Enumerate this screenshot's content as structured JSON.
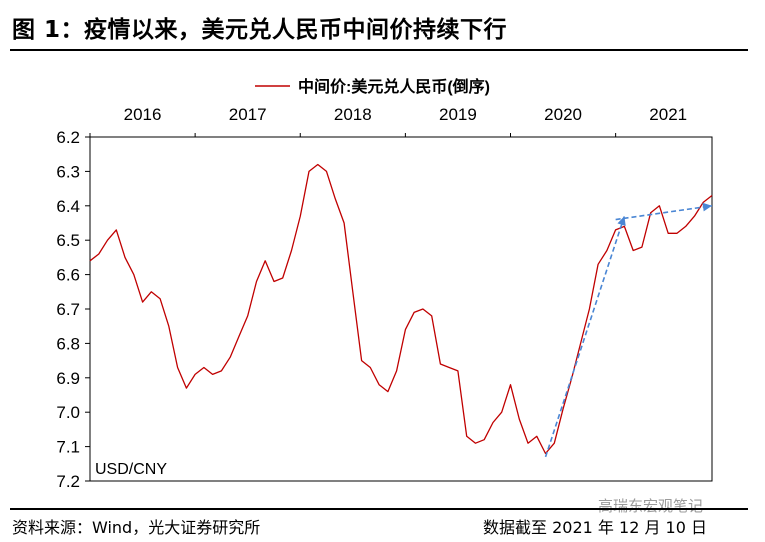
{
  "header": {
    "title": "图 1：疫情以来，美元兑人民币中间价持续下行"
  },
  "footer": {
    "source": "资料来源：Wind，光大证券研究所",
    "date_note": "数据截至 2021 年 12 月 10 日"
  },
  "watermark": "高瑞东宏观笔记",
  "colors": {
    "series": "#c00000",
    "trend_arrow": "#4a86d4",
    "axis": "#000000"
  },
  "chart_data": {
    "type": "line",
    "legend": "中间价:美元兑人民币(倒序)",
    "legend_position": "top",
    "unit_label": "USD/CNY",
    "y_inverted": true,
    "ylim": [
      7.2,
      6.2
    ],
    "y_ticks": [
      "6.2",
      "6.3",
      "6.4",
      "6.5",
      "6.6",
      "6.7",
      "6.8",
      "6.9",
      "7.0",
      "7.1",
      "7.2"
    ],
    "x_ticks": [
      "2016",
      "2017",
      "2018",
      "2019",
      "2020",
      "2021"
    ],
    "x_range": [
      "2016-01",
      "2021-12"
    ],
    "grid": false,
    "series": [
      {
        "x": [
          "2016-01",
          "2016-02",
          "2016-03",
          "2016-04",
          "2016-05",
          "2016-06",
          "2016-07",
          "2016-08",
          "2016-09",
          "2016-10",
          "2016-11",
          "2016-12",
          "2017-01",
          "2017-02",
          "2017-03",
          "2017-04",
          "2017-05",
          "2017-06",
          "2017-07",
          "2017-08",
          "2017-09",
          "2017-10",
          "2017-11",
          "2017-12",
          "2018-01",
          "2018-02",
          "2018-03",
          "2018-04",
          "2018-05",
          "2018-06",
          "2018-07",
          "2018-08",
          "2018-09",
          "2018-10",
          "2018-11",
          "2018-12",
          "2019-01",
          "2019-02",
          "2019-03",
          "2019-04",
          "2019-05",
          "2019-06",
          "2019-07",
          "2019-08",
          "2019-09",
          "2019-10",
          "2019-11",
          "2019-12",
          "2020-01",
          "2020-02",
          "2020-03",
          "2020-04",
          "2020-05",
          "2020-06",
          "2020-07",
          "2020-08",
          "2020-09",
          "2020-10",
          "2020-11",
          "2020-12",
          "2021-01",
          "2021-02",
          "2021-03",
          "2021-04",
          "2021-05",
          "2021-06",
          "2021-07",
          "2021-08",
          "2021-09",
          "2021-10",
          "2021-11",
          "2021-12"
        ],
        "values": [
          6.56,
          6.54,
          6.5,
          6.47,
          6.55,
          6.6,
          6.68,
          6.65,
          6.67,
          6.75,
          6.87,
          6.93,
          6.89,
          6.87,
          6.89,
          6.88,
          6.84,
          6.78,
          6.72,
          6.62,
          6.56,
          6.62,
          6.61,
          6.53,
          6.43,
          6.3,
          6.28,
          6.3,
          6.38,
          6.45,
          6.65,
          6.85,
          6.87,
          6.92,
          6.94,
          6.88,
          6.76,
          6.71,
          6.7,
          6.72,
          6.86,
          6.87,
          6.88,
          7.07,
          7.09,
          7.08,
          7.03,
          7.0,
          6.92,
          7.02,
          7.09,
          7.07,
          7.12,
          7.09,
          6.99,
          6.9,
          6.8,
          6.7,
          6.57,
          6.53,
          6.47,
          6.46,
          6.53,
          6.52,
          6.42,
          6.4,
          6.48,
          6.48,
          6.46,
          6.43,
          6.39,
          6.37
        ]
      }
    ],
    "trend_arrows": [
      {
        "from": [
          "2020-05",
          7.13
        ],
        "to": [
          "2021-02",
          6.43
        ]
      },
      {
        "from": [
          "2021-01",
          6.44
        ],
        "to": [
          "2021-12",
          6.4
        ]
      }
    ]
  }
}
